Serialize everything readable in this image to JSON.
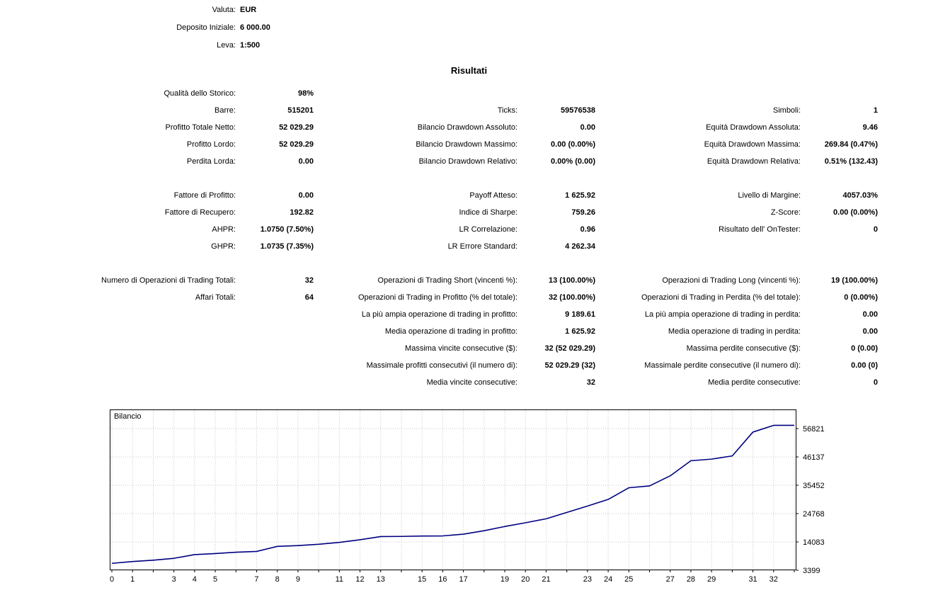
{
  "header": {
    "rows": [
      {
        "label": "Valuta:",
        "value": "EUR"
      },
      {
        "label": "Deposito Iniziale:",
        "value": "6 000.00"
      },
      {
        "label": "Leva:",
        "value": "1:500"
      }
    ]
  },
  "results": {
    "title": "Risultati",
    "rows": [
      {
        "cells": [
          {
            "label": "Qualità dello Storico:",
            "value": "98%"
          },
          null,
          null
        ]
      },
      {
        "cells": [
          {
            "label": "Barre:",
            "value": "515201"
          },
          {
            "label": "Ticks:",
            "value": "59576538"
          },
          {
            "label": "Simboli:",
            "value": "1"
          }
        ]
      },
      {
        "cells": [
          {
            "label": "Profitto Totale Netto:",
            "value": "52 029.29"
          },
          {
            "label": "Bilancio Drawdown Assoluto:",
            "value": "0.00"
          },
          {
            "label": "Equità Drawdown Assoluta:",
            "value": "9.46"
          }
        ]
      },
      {
        "cells": [
          {
            "label": "Profitto Lordo:",
            "value": "52 029.29"
          },
          {
            "label": "Bilancio Drawdown Massimo:",
            "value": "0.00 (0.00%)"
          },
          {
            "label": "Equità Drawdown Massima:",
            "value": "269.84 (0.47%)"
          }
        ]
      },
      {
        "cells": [
          {
            "label": "Perdita Lorda:",
            "value": "0.00"
          },
          {
            "label": "Bilancio Drawdown Relativo:",
            "value": "0.00% (0.00)"
          },
          {
            "label": "Equità Drawdown Relativa:",
            "value": "0.51% (132.43)"
          }
        ]
      },
      {
        "spacer": true
      },
      {
        "cells": [
          {
            "label": "Fattore di Profitto:",
            "value": "0.00"
          },
          {
            "label": "Payoff Atteso:",
            "value": "1 625.92"
          },
          {
            "label": "Livello di Margine:",
            "value": "4057.03%"
          }
        ]
      },
      {
        "cells": [
          {
            "label": "Fattore di Recupero:",
            "value": "192.82"
          },
          {
            "label": "Indice di Sharpe:",
            "value": "759.26"
          },
          {
            "label": "Z-Score:",
            "value": "0.00 (0.00%)"
          }
        ]
      },
      {
        "cells": [
          {
            "label": "AHPR:",
            "value": "1.0750 (7.50%)"
          },
          {
            "label": "LR Correlazione:",
            "value": "0.96"
          },
          {
            "label": "Risultato dell' OnTester:",
            "value": "0"
          }
        ]
      },
      {
        "cells": [
          {
            "label": "GHPR:",
            "value": "1.0735 (7.35%)"
          },
          {
            "label": "LR Errore Standard:",
            "value": "4 262.34"
          },
          null
        ]
      },
      {
        "spacer": true
      },
      {
        "cells": [
          {
            "label": "Numero di Operazioni di Trading Totali:",
            "value": "32"
          },
          {
            "label": "Operazioni di Trading Short (vincenti %):",
            "value": "13 (100.00%)"
          },
          {
            "label": "Operazioni di Trading Long (vincenti %):",
            "value": "19 (100.00%)"
          }
        ]
      },
      {
        "cells": [
          {
            "label": "Affari Totali:",
            "value": "64"
          },
          {
            "label": "Operazioni di Trading in Profitto (% del totale):",
            "value": "32 (100.00%)"
          },
          {
            "label": "Operazioni di Trading in Perdita (% del totale):",
            "value": "0 (0.00%)"
          }
        ]
      },
      {
        "cells": [
          null,
          {
            "label": "La più ampia operazione di trading in profitto:",
            "value": "9 189.61"
          },
          {
            "label": "La più ampia operazione di trading in perdita:",
            "value": "0.00"
          }
        ]
      },
      {
        "cells": [
          null,
          {
            "label": "Media operazione di trading in profitto:",
            "value": "1 625.92"
          },
          {
            "label": "Media operazione di trading in perdita:",
            "value": "0.00"
          }
        ]
      },
      {
        "cells": [
          null,
          {
            "label": "Massima vincite consecutive ($):",
            "value": "32 (52 029.29)"
          },
          {
            "label": "Massima perdite consecutive ($):",
            "value": "0 (0.00)"
          }
        ]
      },
      {
        "cells": [
          null,
          {
            "label": "Massimale profitti consecutivi (il numero di):",
            "value": "52 029.29 (32)"
          },
          {
            "label": "Massimale perdite consecutive (il numero di):",
            "value": "0.00 (0)"
          }
        ]
      },
      {
        "cells": [
          null,
          {
            "label": "Media vincite consecutive:",
            "value": "32"
          },
          {
            "label": "Media perdite consecutive:",
            "value": "0"
          }
        ]
      }
    ]
  },
  "chart_data": {
    "type": "line",
    "title": "Bilancio",
    "series": [
      {
        "name": "Bilancio",
        "x": [
          0,
          1,
          2,
          3,
          4,
          5,
          6,
          7,
          8,
          9,
          10,
          11,
          12,
          13,
          14,
          15,
          16,
          17,
          18,
          19,
          20,
          21,
          22,
          23,
          24,
          25,
          26,
          27,
          28,
          29,
          30,
          31,
          32
        ],
        "values": [
          6000,
          6700,
          7200,
          7900,
          9300,
          9700,
          10200,
          10500,
          12400,
          12700,
          13200,
          13900,
          14900,
          16100,
          16150,
          16300,
          16350,
          17000,
          18300,
          19900,
          21300,
          22800,
          25200,
          27600,
          30100,
          34500,
          35200,
          39000,
          44700,
          45300,
          46500,
          55500,
          58029.29
        ]
      }
    ],
    "x_ticks": [
      0,
      1,
      3,
      4,
      5,
      7,
      8,
      9,
      11,
      12,
      13,
      15,
      16,
      17,
      19,
      20,
      21,
      23,
      24,
      25,
      27,
      28,
      29,
      31,
      32
    ],
    "y_ticks": [
      3399,
      14083,
      24768,
      35452,
      46137,
      56821
    ],
    "x_range": [
      0,
      33
    ],
    "grid": true,
    "line_color": "#000080",
    "grid_color": "#c8c8c8"
  }
}
